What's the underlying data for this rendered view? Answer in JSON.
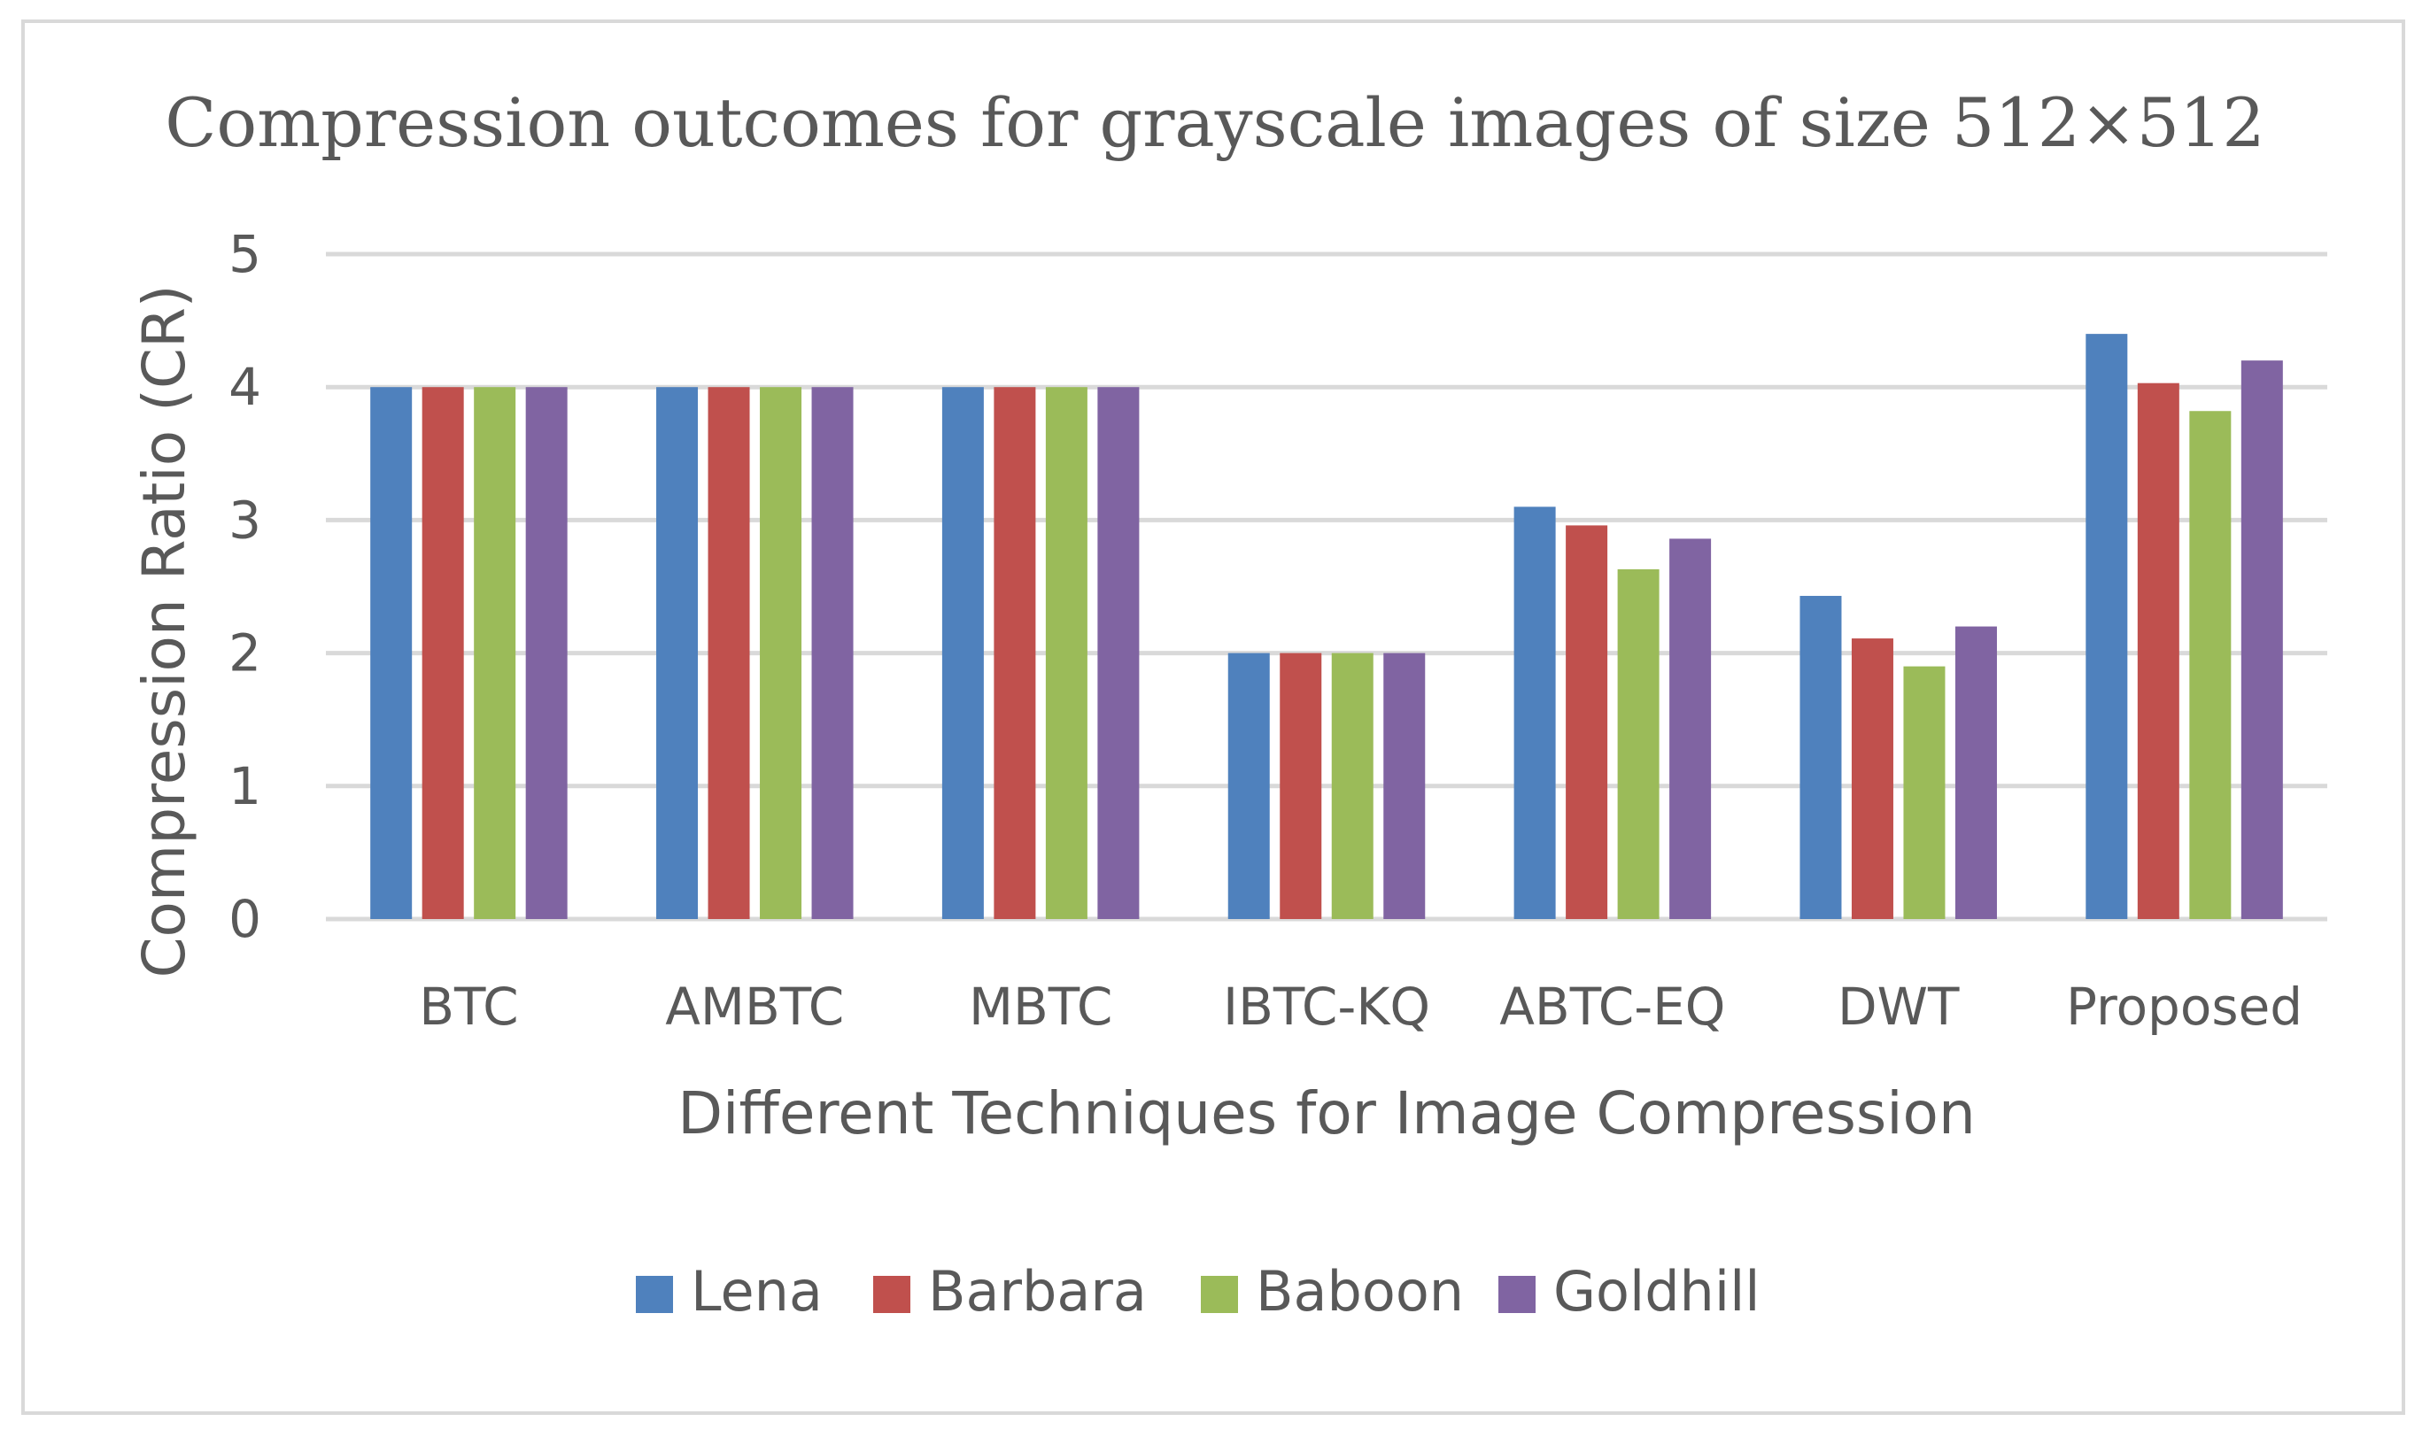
{
  "chart_data": {
    "type": "bar",
    "title": "Compression outcomes for grayscale images of size 512×512",
    "xlabel": "Different Techniques for Image Compression",
    "ylabel": "Compression Ratio (CR)",
    "categories": [
      "BTC",
      "AMBTC",
      "MBTC",
      "IBTC-KQ",
      "ABTC-EQ",
      "DWT",
      "Proposed"
    ],
    "ylim": [
      0,
      5
    ],
    "yticks": [
      "0",
      "1",
      "2",
      "3",
      "4",
      "5"
    ],
    "grid": true,
    "legend_position": "bottom",
    "series": [
      {
        "name": "Lena",
        "color": "#4f81bd",
        "values": [
          4,
          4,
          4,
          2,
          3.1,
          2.43,
          4.4
        ]
      },
      {
        "name": "Barbara",
        "color": "#c0504d",
        "values": [
          4,
          4,
          4,
          2,
          2.96,
          2.11,
          4.03
        ]
      },
      {
        "name": "Baboon",
        "color": "#9bbb59",
        "values": [
          4,
          4,
          4,
          2,
          2.63,
          1.9,
          3.82
        ]
      },
      {
        "name": "Goldhill",
        "color": "#8064a2",
        "values": [
          4,
          4,
          4,
          2,
          2.86,
          2.2,
          4.2
        ]
      }
    ]
  }
}
